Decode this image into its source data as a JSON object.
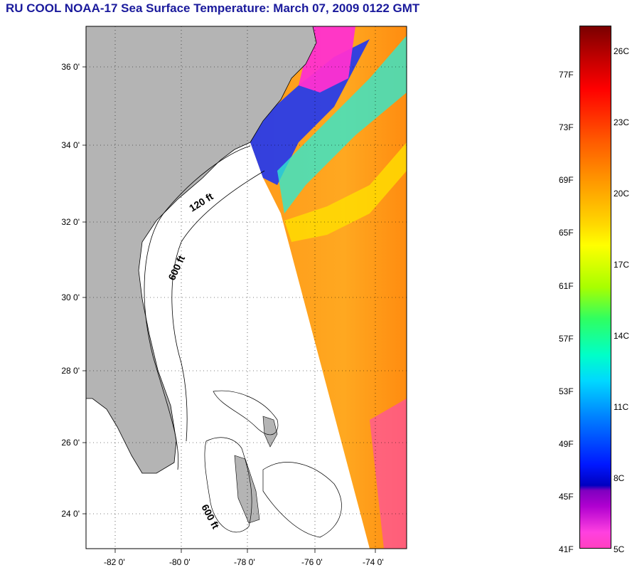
{
  "title": "RU COOL  NOAA-17  Sea Surface Temperature:  March 07, 2009 0122 GMT",
  "map": {
    "lat_labels": [
      "36 0'",
      "34 0'",
      "32 0'",
      "30 0'",
      "28 0'",
      "26 0'",
      "24 0'"
    ],
    "lon_labels": [
      "-82 0'",
      "-80 0'",
      "-78 0'",
      "-76 0'",
      "-74 0'"
    ],
    "contour_labels": {
      "c120": "120 ft",
      "c600a": "600 ft",
      "c600b": "600 ft"
    }
  },
  "colorbar": {
    "f_labels": [
      "77F",
      "73F",
      "69F",
      "65F",
      "61F",
      "57F",
      "53F",
      "49F",
      "45F",
      "41F"
    ],
    "c_labels": [
      "26C",
      "23C",
      "20C",
      "17C",
      "14C",
      "11C",
      "8C",
      "5C"
    ]
  },
  "colors": {
    "title": "#1a1a9c",
    "land": "#b4b4b4",
    "warm_water": "#ff9a1a"
  }
}
